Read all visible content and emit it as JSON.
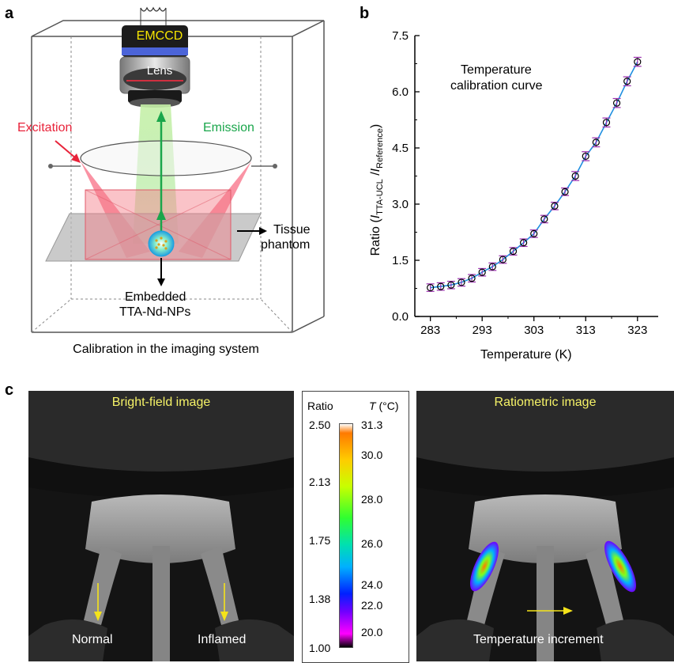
{
  "panel_a": {
    "letter": "a",
    "camera_label": "EMCCD",
    "lens_label": "Lens",
    "excitation_label": "Excitation",
    "emission_label": "Emission",
    "tissue_label_line1": "Tissue",
    "tissue_label_line2": "phantom",
    "np_label_line1": "Embedded",
    "np_label_line2": "TTA-Nd-NPs",
    "caption": "Calibration in the imaging system",
    "colors": {
      "excitation": "#e8233a",
      "emission": "#1aa64b",
      "camera_text": "#f7e600"
    }
  },
  "panel_b": {
    "letter": "b",
    "annotation_line1": "Temperature",
    "annotation_line2": "calibration curve",
    "xlabel": "Temperature (K)",
    "ylabel_prefix": "Ratio (",
    "ylabel_i1": "I",
    "ylabel_sub1": "TTA-UCL",
    "ylabel_slash": " /",
    "ylabel_i2": "I",
    "ylabel_sub2": "Reference",
    "ylabel_suffix": ")"
  },
  "chart_data": {
    "type": "scatter",
    "x": [
      283,
      285,
      287,
      289,
      291,
      293,
      295,
      297,
      299,
      301,
      303,
      305,
      307,
      309,
      311,
      313,
      315,
      317,
      319,
      321,
      323
    ],
    "y": [
      0.77,
      0.8,
      0.84,
      0.91,
      1.02,
      1.18,
      1.33,
      1.52,
      1.74,
      1.97,
      2.21,
      2.6,
      2.95,
      3.33,
      3.75,
      4.28,
      4.65,
      5.18,
      5.7,
      6.28,
      6.8
    ],
    "error": [
      0.1,
      0.1,
      0.1,
      0.1,
      0.1,
      0.1,
      0.1,
      0.1,
      0.1,
      0.1,
      0.1,
      0.1,
      0.1,
      0.1,
      0.12,
      0.12,
      0.12,
      0.12,
      0.12,
      0.12,
      0.12
    ],
    "xlim": [
      280,
      327
    ],
    "ylim": [
      0,
      7.5
    ],
    "xticks": [
      "283",
      "293",
      "303",
      "313",
      "323"
    ],
    "xtick_values": [
      283,
      293,
      303,
      313,
      323
    ],
    "yticks": [
      "0.0",
      "1.5",
      "3.0",
      "4.5",
      "6.0",
      "7.5"
    ],
    "ytick_values": [
      0,
      1.5,
      3.0,
      4.5,
      6.0,
      7.5
    ],
    "grid": false,
    "fit_color": "#1f8fe0",
    "errorbar_color": "#9b2fae",
    "marker_color": "#000000"
  },
  "panel_c": {
    "letter": "c",
    "bright_field_title": "Bright-field image",
    "ratiometric_title": "Ratiometric image",
    "normal_label": "Normal",
    "inflamed_label": "Inflamed",
    "increment_label": "Temperature increment",
    "arrow_color": "#f5e31a",
    "colorbar": {
      "left_title": "Ratio",
      "right_title_t": "T",
      "right_title_unit": " (°C)",
      "ratio_ticks": [
        "2.50",
        "2.13",
        "1.75",
        "1.38",
        "1.00"
      ],
      "temp_ticks": [
        "31.3",
        "30.0",
        "28.0",
        "26.0",
        "24.0",
        "22.0",
        "20.0"
      ]
    }
  }
}
